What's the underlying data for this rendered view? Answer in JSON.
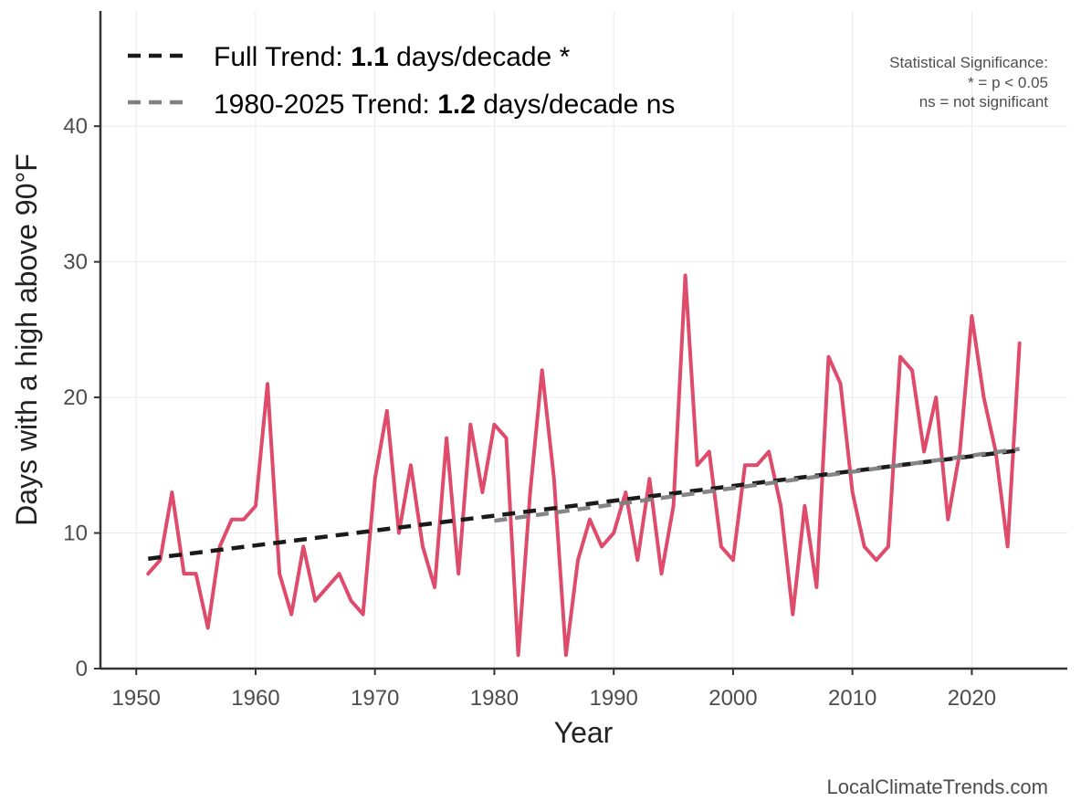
{
  "chart_data": {
    "type": "line",
    "title": "",
    "xlabel": "Year",
    "ylabel": "Days with a high above 90°F",
    "xlim": [
      1947,
      2028
    ],
    "ylim": [
      0,
      48.5
    ],
    "xticks": [
      1950,
      1960,
      1970,
      1980,
      1990,
      2000,
      2010,
      2020
    ],
    "yticks": [
      0,
      10,
      20,
      30,
      40
    ],
    "grid": true,
    "series": [
      {
        "name": "Days with a high above 90°F",
        "color": "#DE4B6B",
        "x": [
          1951,
          1952,
          1953,
          1954,
          1955,
          1956,
          1957,
          1958,
          1959,
          1960,
          1961,
          1962,
          1963,
          1964,
          1965,
          1966,
          1967,
          1968,
          1969,
          1970,
          1971,
          1972,
          1973,
          1974,
          1975,
          1976,
          1977,
          1978,
          1979,
          1980,
          1981,
          1982,
          1983,
          1984,
          1985,
          1986,
          1987,
          1988,
          1989,
          1990,
          1991,
          1992,
          1993,
          1994,
          1995,
          1996,
          1997,
          1998,
          1999,
          2000,
          2001,
          2002,
          2003,
          2004,
          2005,
          2006,
          2007,
          2008,
          2009,
          2010,
          2011,
          2012,
          2013,
          2014,
          2015,
          2016,
          2017,
          2018,
          2019,
          2020,
          2021,
          2022,
          2023,
          2024
        ],
        "values": [
          7,
          8,
          13,
          7,
          7,
          3,
          9,
          11,
          11,
          12,
          21,
          7,
          4,
          9,
          5,
          6,
          7,
          5,
          4,
          14,
          19,
          10,
          15,
          9,
          6,
          17,
          7,
          18,
          13,
          18,
          17,
          1,
          13,
          22,
          14,
          1,
          8,
          11,
          9,
          10,
          13,
          8,
          14,
          7,
          12,
          29,
          15,
          16,
          9,
          8,
          15,
          15,
          16,
          12,
          4,
          12,
          6,
          23,
          21,
          13,
          9,
          8,
          9,
          23,
          22,
          16,
          20,
          11,
          16,
          26,
          20,
          16,
          9,
          24
        ]
      }
    ],
    "trends": [
      {
        "name": "Full Trend",
        "color": "#1a1a1a",
        "x": [
          1951,
          2024
        ],
        "values": [
          8.1,
          16.1
        ]
      },
      {
        "name": "1980-2025 Trend",
        "color": "#808080",
        "x": [
          1980,
          2024
        ],
        "values": [
          10.9,
          16.2
        ]
      }
    ],
    "legend": {
      "position": "top-left",
      "items": [
        {
          "prefix": "Full Trend: ",
          "value": "1.1",
          "suffix": " days/decade *"
        },
        {
          "prefix": "1980-2025 Trend: ",
          "value": "1.2",
          "suffix": " days/decade ns"
        }
      ]
    },
    "annotations": {
      "significance_title": "Statistical Significance:",
      "significance_line1": "* = p < 0.05",
      "significance_line2": "ns = not significant",
      "credit": "LocalClimateTrends.com"
    }
  }
}
